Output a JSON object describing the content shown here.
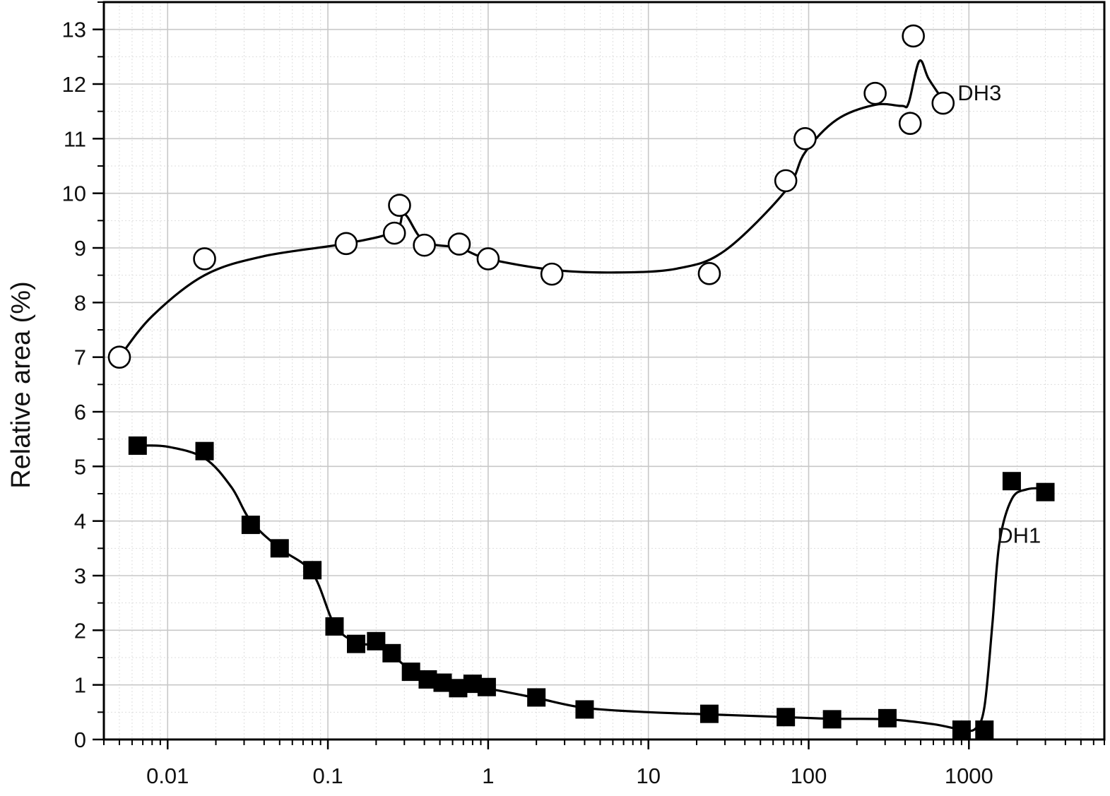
{
  "chart_data": {
    "type": "scatter",
    "title": "",
    "xlabel": "",
    "ylabel": "Relative area (%)",
    "xscale": "log",
    "xlim": [
      0.004,
      7000
    ],
    "ylim": [
      0,
      13.5
    ],
    "grid": true,
    "x_ticks": [
      {
        "value": 0.01,
        "label": "0.01"
      },
      {
        "value": 0.1,
        "label": "0.1"
      },
      {
        "value": 1,
        "label": "1"
      },
      {
        "value": 10,
        "label": "10"
      },
      {
        "value": 100,
        "label": "100"
      },
      {
        "value": 1000,
        "label": "1000"
      }
    ],
    "y_ticks": [
      {
        "value": 0,
        "label": "0"
      },
      {
        "value": 1,
        "label": "1"
      },
      {
        "value": 2,
        "label": "2"
      },
      {
        "value": 3,
        "label": "3"
      },
      {
        "value": 4,
        "label": "4"
      },
      {
        "value": 5,
        "label": "5"
      },
      {
        "value": 6,
        "label": "6"
      },
      {
        "value": 7,
        "label": "7"
      },
      {
        "value": 8,
        "label": "8"
      },
      {
        "value": 9,
        "label": "9"
      },
      {
        "value": 10,
        "label": "10"
      },
      {
        "value": 11,
        "label": "11"
      },
      {
        "value": 12,
        "label": "12"
      },
      {
        "value": 13,
        "label": "13"
      }
    ],
    "series": [
      {
        "name": "DH3",
        "marker": "open-circle",
        "color": "#000000",
        "label_near": [
          850,
          11.7
        ],
        "points": [
          [
            0.005,
            7.0
          ],
          [
            0.017,
            8.8
          ],
          [
            0.13,
            9.08
          ],
          [
            0.26,
            9.27
          ],
          [
            0.28,
            9.78
          ],
          [
            0.4,
            9.05
          ],
          [
            0.66,
            9.07
          ],
          [
            1.0,
            8.8
          ],
          [
            2.5,
            8.52
          ],
          [
            24,
            8.53
          ],
          [
            72,
            10.23
          ],
          [
            95,
            11.0
          ],
          [
            260,
            11.83
          ],
          [
            430,
            11.28
          ],
          [
            450,
            12.88
          ],
          [
            690,
            11.65
          ]
        ],
        "curve": [
          [
            0.005,
            7.0
          ],
          [
            0.008,
            7.75
          ],
          [
            0.017,
            8.5
          ],
          [
            0.04,
            8.85
          ],
          [
            0.13,
            9.08
          ],
          [
            0.26,
            9.3
          ],
          [
            0.3,
            9.62
          ],
          [
            0.4,
            9.12
          ],
          [
            0.66,
            9.0
          ],
          [
            1.0,
            8.8
          ],
          [
            2.5,
            8.6
          ],
          [
            6,
            8.55
          ],
          [
            15,
            8.62
          ],
          [
            30,
            8.95
          ],
          [
            72,
            10.05
          ],
          [
            95,
            10.75
          ],
          [
            150,
            11.35
          ],
          [
            260,
            11.62
          ],
          [
            380,
            11.6
          ],
          [
            420,
            11.65
          ],
          [
            490,
            12.42
          ],
          [
            560,
            12.1
          ],
          [
            690,
            11.7
          ]
        ]
      },
      {
        "name": "DH1",
        "marker": "filled-square",
        "color": "#000000",
        "label_near": [
          1500,
          3.6
        ],
        "points": [
          [
            0.0065,
            5.38
          ],
          [
            0.017,
            5.28
          ],
          [
            0.033,
            3.93
          ],
          [
            0.05,
            3.5
          ],
          [
            0.08,
            3.1
          ],
          [
            0.11,
            2.07
          ],
          [
            0.15,
            1.75
          ],
          [
            0.2,
            1.8
          ],
          [
            0.25,
            1.58
          ],
          [
            0.33,
            1.24
          ],
          [
            0.42,
            1.1
          ],
          [
            0.52,
            1.04
          ],
          [
            0.65,
            0.94
          ],
          [
            0.8,
            1.02
          ],
          [
            0.98,
            0.96
          ],
          [
            2.0,
            0.77
          ],
          [
            4.0,
            0.55
          ],
          [
            24,
            0.47
          ],
          [
            72,
            0.41
          ],
          [
            140,
            0.37
          ],
          [
            310,
            0.39
          ],
          [
            900,
            0.18
          ],
          [
            1250,
            0.18
          ],
          [
            1850,
            4.73
          ],
          [
            3000,
            4.53
          ]
        ],
        "curve": [
          [
            0.0065,
            5.38
          ],
          [
            0.01,
            5.36
          ],
          [
            0.017,
            5.15
          ],
          [
            0.025,
            4.62
          ],
          [
            0.033,
            4.0
          ],
          [
            0.05,
            3.5
          ],
          [
            0.08,
            3.05
          ],
          [
            0.11,
            2.1
          ],
          [
            0.15,
            1.78
          ],
          [
            0.2,
            1.72
          ],
          [
            0.25,
            1.55
          ],
          [
            0.33,
            1.27
          ],
          [
            0.45,
            1.1
          ],
          [
            0.65,
            1.0
          ],
          [
            1.0,
            0.93
          ],
          [
            2.0,
            0.76
          ],
          [
            4.0,
            0.58
          ],
          [
            10,
            0.5
          ],
          [
            24,
            0.46
          ],
          [
            72,
            0.41
          ],
          [
            140,
            0.38
          ],
          [
            310,
            0.37
          ],
          [
            600,
            0.28
          ],
          [
            900,
            0.18
          ],
          [
            1100,
            0.2
          ],
          [
            1250,
            0.6
          ],
          [
            1400,
            2.1
          ],
          [
            1550,
            3.6
          ],
          [
            1850,
            4.4
          ],
          [
            2300,
            4.58
          ],
          [
            3000,
            4.6
          ]
        ]
      }
    ]
  }
}
